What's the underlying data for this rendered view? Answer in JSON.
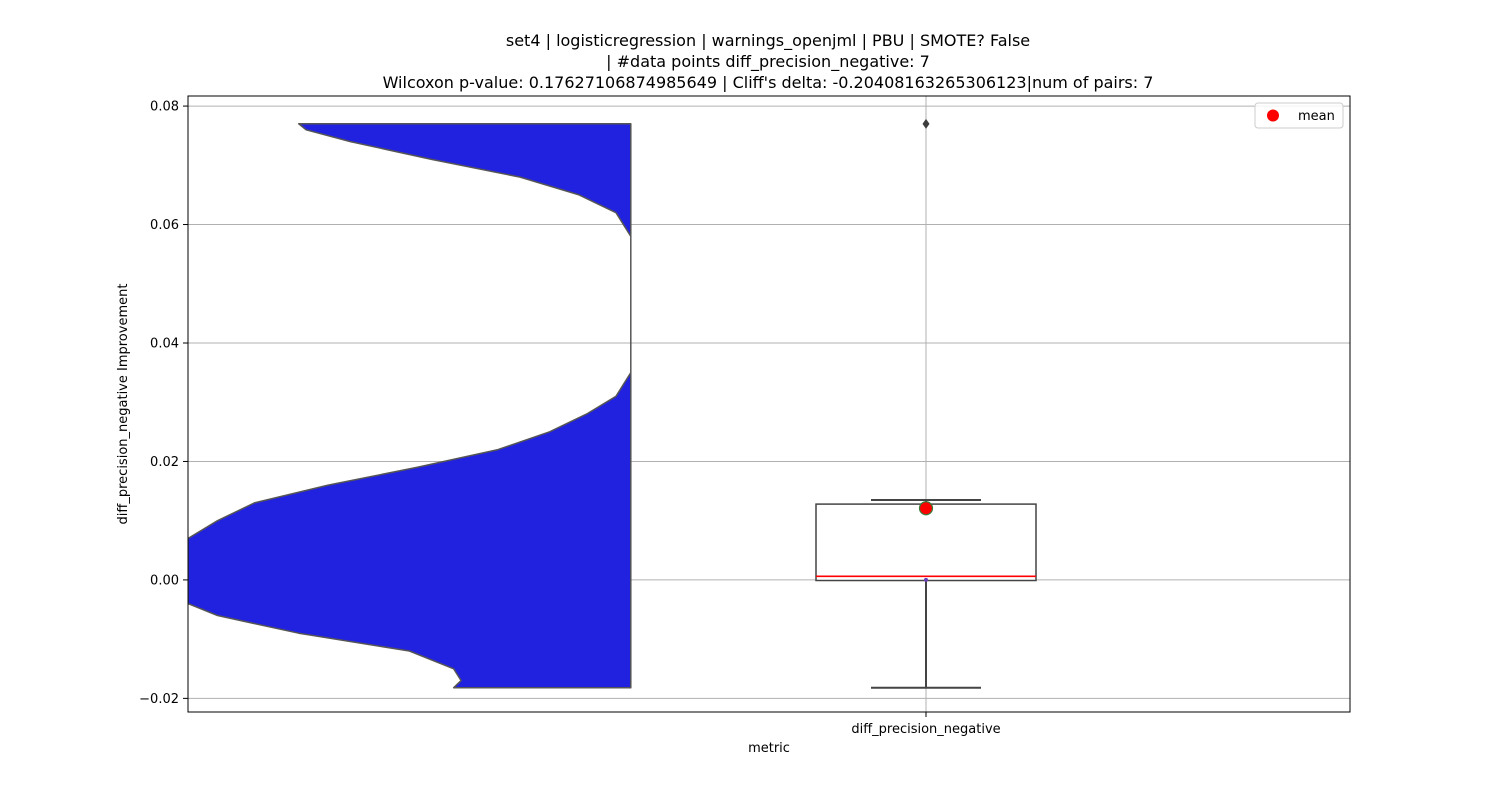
{
  "chart_data": {
    "type": "violin+box",
    "title_lines": [
      "set4 | logisticregression | warnings_openjml | PBU | SMOTE? False",
      "| #data points diff_precision_negative: 7",
      "Wilcoxon p-value: 0.17627106874985649 | Cliff's delta: -0.20408163265306123|num of pairs: 7"
    ],
    "xlabel": "metric",
    "ylabel": "diff_precision_negative Improvement",
    "categories": [
      "diff_precision_negative"
    ],
    "ylim": [
      -0.0223,
      0.0817
    ],
    "yticks": [
      -0.02,
      0.0,
      0.02,
      0.04,
      0.06,
      0.08
    ],
    "ytick_labels": [
      "−0.02",
      "0.00",
      "0.02",
      "0.04",
      "0.06",
      "0.08"
    ],
    "grid": true,
    "legend": {
      "position": "top-right",
      "entries": [
        {
          "label": "mean",
          "marker": "circle",
          "color": "#ff0000"
        }
      ]
    },
    "violin": {
      "color": "#2121e0",
      "edge_color": "#555555",
      "side": "left",
      "y_min": -0.0182,
      "y_max": 0.077,
      "profile": [
        [
          -0.0182,
          0.36
        ],
        [
          -0.017,
          0.37
        ],
        [
          -0.015,
          0.36
        ],
        [
          -0.012,
          0.3
        ],
        [
          -0.009,
          0.15
        ],
        [
          -0.006,
          0.04
        ],
        [
          -0.004,
          0.0
        ],
        [
          -0.003,
          0.0
        ],
        [
          0.0,
          0.0
        ],
        [
          0.004,
          0.0
        ],
        [
          0.007,
          0.0
        ],
        [
          0.01,
          0.04
        ],
        [
          0.013,
          0.09
        ],
        [
          0.016,
          0.19
        ],
        [
          0.019,
          0.31
        ],
        [
          0.022,
          0.42
        ],
        [
          0.025,
          0.49
        ],
        [
          0.028,
          0.54
        ],
        [
          0.031,
          0.58
        ],
        [
          0.035,
          0.6
        ],
        [
          0.042,
          0.6
        ],
        [
          0.05,
          0.6
        ],
        [
          0.058,
          0.6
        ],
        [
          0.062,
          0.58
        ],
        [
          0.065,
          0.53
        ],
        [
          0.068,
          0.45
        ],
        [
          0.071,
          0.33
        ],
        [
          0.074,
          0.22
        ],
        [
          0.076,
          0.16
        ],
        [
          0.077,
          0.15
        ]
      ]
    },
    "box": {
      "q1": -0.0001,
      "median": 0.0006,
      "q3": 0.0128,
      "whisker_low": -0.0182,
      "whisker_high": 0.0135,
      "mean": 0.0121,
      "outliers": [
        0.077
      ],
      "box_color": "#ffffff",
      "edge_color": "#444444",
      "median_color": "#ff0000"
    }
  }
}
